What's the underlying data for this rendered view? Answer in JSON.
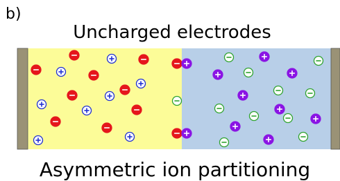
{
  "panel_label": "b)",
  "top_caption": "Uncharged electrodes",
  "bottom_caption": "Asymmetric ion partitioning"
}
